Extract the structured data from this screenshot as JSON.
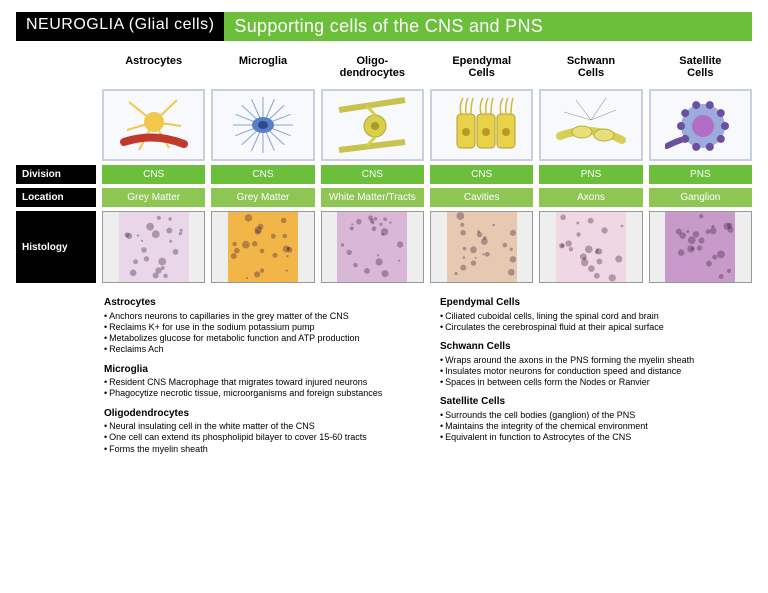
{
  "title": {
    "left": "NEUROGLIA (Glial cells)",
    "right": "Supporting cells of the CNS and PNS"
  },
  "columns": [
    {
      "name": "Astrocytes",
      "division": "CNS",
      "location": "Grey Matter"
    },
    {
      "name": "Microglia",
      "division": "CNS",
      "location": "Grey Matter"
    },
    {
      "name": "Oligo-\ndendrocytes",
      "division": "CNS",
      "location": "White Matter/Tracts"
    },
    {
      "name": "Ependymal\nCells",
      "division": "CNS",
      "location": "Cavities"
    },
    {
      "name": "Schwann\nCells",
      "division": "PNS",
      "location": "Axons"
    },
    {
      "name": "Satellite\nCells",
      "division": "PNS",
      "location": "Ganglion"
    }
  ],
  "rowLabels": {
    "division": "Division",
    "location": "Location",
    "histology": "Histology"
  },
  "colors": {
    "division_bg": "#6bbf3a",
    "location_bg": "#8ec654",
    "illus_border": "#c7d0e2",
    "histo_tints": [
      "#e9d6e8",
      "#f2b648",
      "#d9b7d6",
      "#e6c9b0",
      "#f0d7e4",
      "#c89ac9"
    ]
  },
  "illustrations": {
    "astrocyte_fill": "#f2c84b",
    "astrocyte_vessel": "#c0392b",
    "microglia_fill": "#5b7fc7",
    "oligo_fill": "#d9cf4a",
    "oligo_axon": "#c8c34f",
    "ependymal_fill": "#e8d24a",
    "ependymal_cilia": "#d4b83a",
    "schwann_axon": "#d6cf55",
    "schwann_branch": "#666",
    "satellite_body": "#8a9dd6",
    "satellite_nucleus": "#b06fc4",
    "satellite_ring": "#6b4fa0"
  },
  "descriptions": {
    "left": [
      {
        "title": "Astrocytes",
        "bullets": [
          "Anchors neurons to capillaries in the grey matter of the CNS",
          "Reclaims K+ for use in the sodium potassium pump",
          "Metabolizes glucose for metabolic function and ATP production",
          "Reclaims Ach"
        ]
      },
      {
        "title": "Microglia",
        "bullets": [
          "Resident CNS Macrophage that migrates toward injured neurons",
          "Phagocytize necrotic tissue, microorganisms and foreign substances"
        ]
      },
      {
        "title": "Oligodendrocytes",
        "bullets": [
          "Neural insulating cell in the white matter of the CNS",
          "One cell can extend its phospholipid bilayer to cover 15-60 tracts",
          "Forms the myelin sheath"
        ]
      }
    ],
    "right": [
      {
        "title": "Ependymal Cells",
        "bullets": [
          "Ciliated cuboidal cells, lining the spinal cord and brain",
          "Circulates the cerebrospinal fluid at their apical surface"
        ]
      },
      {
        "title": "Schwann Cells",
        "bullets": [
          "Wraps around the axons in the PNS forming the myelin sheath",
          "Insulates motor neurons for conduction speed and distance",
          "Spaces in between cells form the Nodes or Ranvier"
        ]
      },
      {
        "title": "Satellite Cells",
        "bullets": [
          "Surrounds the cell bodies (ganglion) of the PNS",
          "Maintains the integrity of the chemical environment",
          "Equivalent in function to Astrocytes of the CNS"
        ]
      }
    ]
  }
}
